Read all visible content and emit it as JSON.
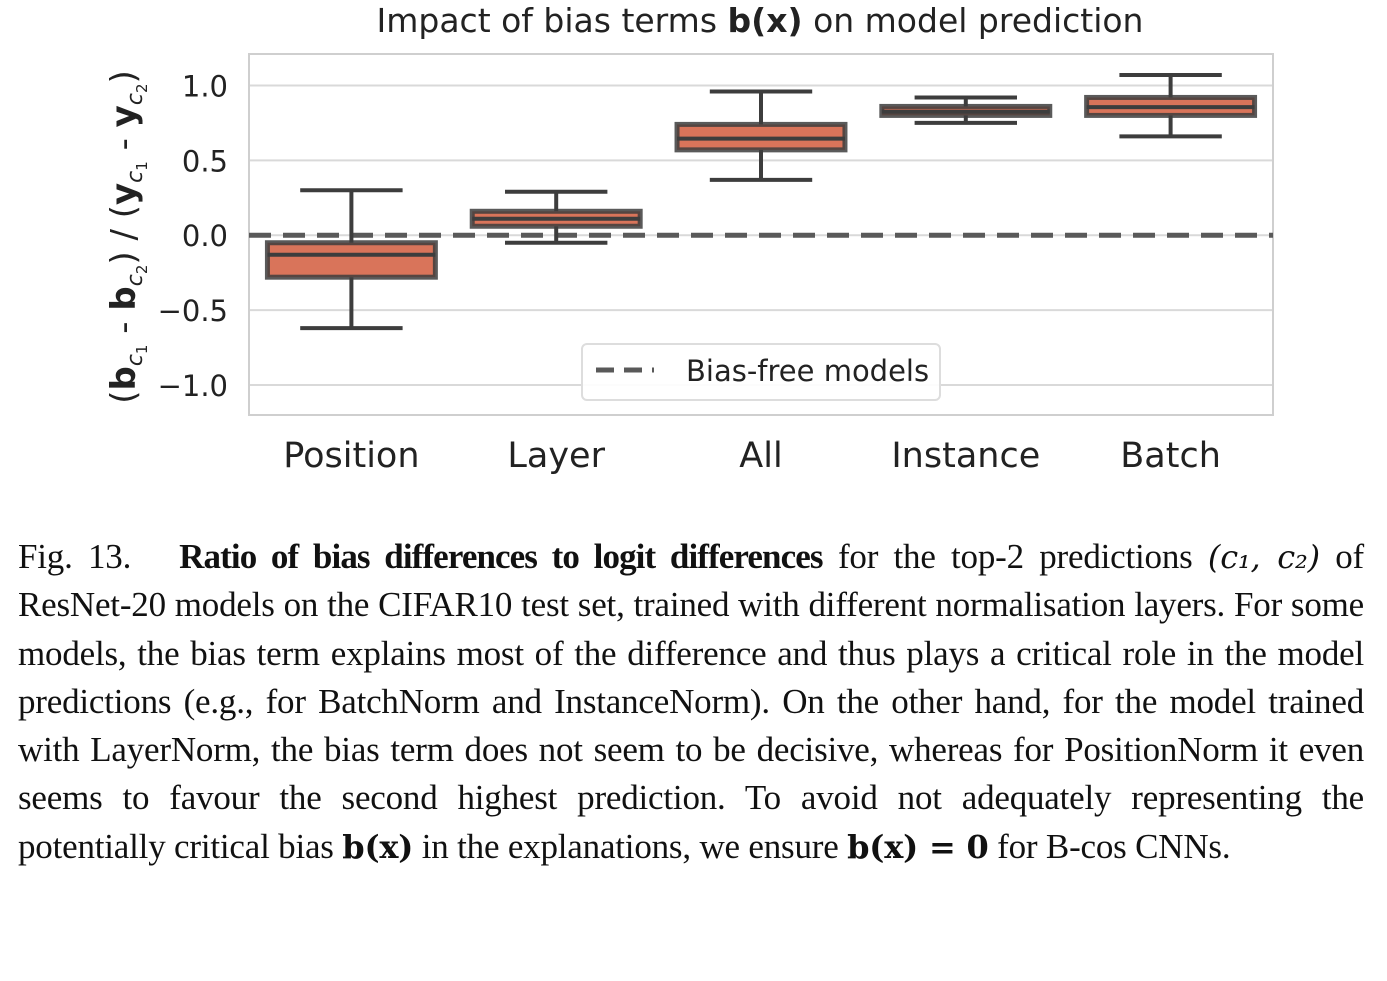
{
  "chart_data": {
    "type": "box",
    "title_prefix": "Impact of bias terms ",
    "title_bold": "b(x)",
    "title_suffix": " on model prediction",
    "ylabel": "(b_c1 - b_c2) / (y_c1 - y_c2)",
    "ylim": [
      -1.2,
      1.21
    ],
    "yticks": [
      1.0,
      0.5,
      0.0,
      -0.5,
      -1.0
    ],
    "ytick_labels": [
      "1.0",
      "0.5",
      "0.0",
      "−0.5",
      "−1.0"
    ],
    "grid": true,
    "categories": [
      "Position",
      "Layer",
      "All",
      "Instance",
      "Batch"
    ],
    "boxes": [
      {
        "category": "Position",
        "whisker_low": -0.62,
        "q1": -0.28,
        "median": -0.13,
        "q3": -0.05,
        "whisker_high": 0.3
      },
      {
        "category": "Layer",
        "whisker_low": -0.05,
        "q1": 0.06,
        "median": 0.11,
        "q3": 0.16,
        "whisker_high": 0.29
      },
      {
        "category": "All",
        "whisker_low": 0.37,
        "q1": 0.57,
        "median": 0.645,
        "q3": 0.74,
        "whisker_high": 0.96
      },
      {
        "category": "Instance",
        "whisker_low": 0.75,
        "q1": 0.8,
        "median": 0.825,
        "q3": 0.86,
        "whisker_high": 0.92
      },
      {
        "category": "Batch",
        "whisker_low": 0.66,
        "q1": 0.8,
        "median": 0.855,
        "q3": 0.92,
        "whisker_high": 1.07
      }
    ],
    "reference_line": {
      "y": 0.0,
      "style": "dashed",
      "label": "Bias-free models"
    },
    "legend_position": "bottom-center",
    "colors": {
      "box_fill": "#d9745a",
      "box_edge": "#3d3d3d",
      "median": "#3d3d3d",
      "reference": "#595959",
      "grid": "#d9d9d9"
    }
  },
  "caption": {
    "label": "Fig. 13.",
    "bold": "Ratio of bias differences to logit differences",
    "part1": " for the top-2 predictions ",
    "part2": " of ResNet-20 models on the CIFAR10 test set, trained with different normalisation layers. For some models, the bias term explains most of the difference and thus plays a critical role in the model predictions (e.g., for BatchNorm and InstanceNorm). On the other hand, for the model trained with LayerNorm, the bias term does not seem to be decisive, whereas for PositionNorm it even seems to favour the second highest prediction. To avoid not adequately representing the potentially critical bias ",
    "part3": " in the explanations, we ensure ",
    "part4": " for B-cos CNNs.",
    "math_c1c2": "(c₁, c₂)",
    "math_bx": "b(x)",
    "math_bx0": "b(x) = 0"
  }
}
